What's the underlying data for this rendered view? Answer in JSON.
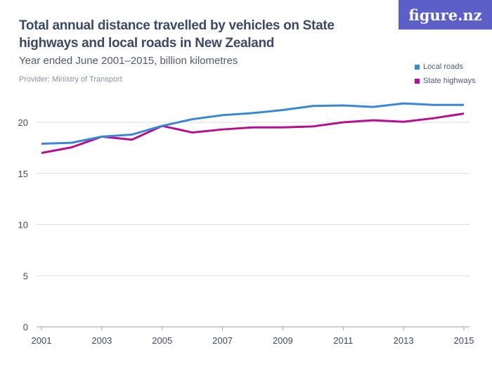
{
  "title": "Total annual distance travelled by vehicles on State highways and local roads in New Zealand",
  "subtitle": "Year ended June 2001–2015, billion kilometres",
  "provider": "Provider: Ministry of Transport",
  "logo": "figure.nz",
  "chart_data": {
    "type": "line",
    "title": "Total annual distance travelled by vehicles on State highways and local roads in New Zealand",
    "subtitle": "Year ended June 2001–2015, billion kilometres",
    "x": [
      2001,
      2002,
      2003,
      2004,
      2005,
      2006,
      2007,
      2008,
      2009,
      2010,
      2011,
      2012,
      2013,
      2014,
      2015
    ],
    "xticks": [
      2001,
      2003,
      2005,
      2007,
      2009,
      2011,
      2013,
      2015
    ],
    "yticks": [
      0,
      5,
      10,
      15,
      20
    ],
    "ylim": [
      0,
      22.5
    ],
    "grid": "horizontal",
    "legend_position": "top-right",
    "series": [
      {
        "name": "Local roads",
        "color": "#3a87d4",
        "values": [
          17.9,
          18.0,
          18.6,
          18.8,
          19.65,
          20.3,
          20.7,
          20.9,
          21.2,
          21.6,
          21.65,
          21.5,
          21.85,
          21.7,
          21.7
        ]
      },
      {
        "name": "State highways",
        "color": "#b5118e",
        "values": [
          17.0,
          17.55,
          18.6,
          18.3,
          19.65,
          19.0,
          19.3,
          19.5,
          19.5,
          19.6,
          20.0,
          20.2,
          20.05,
          20.4,
          20.85
        ]
      }
    ]
  }
}
